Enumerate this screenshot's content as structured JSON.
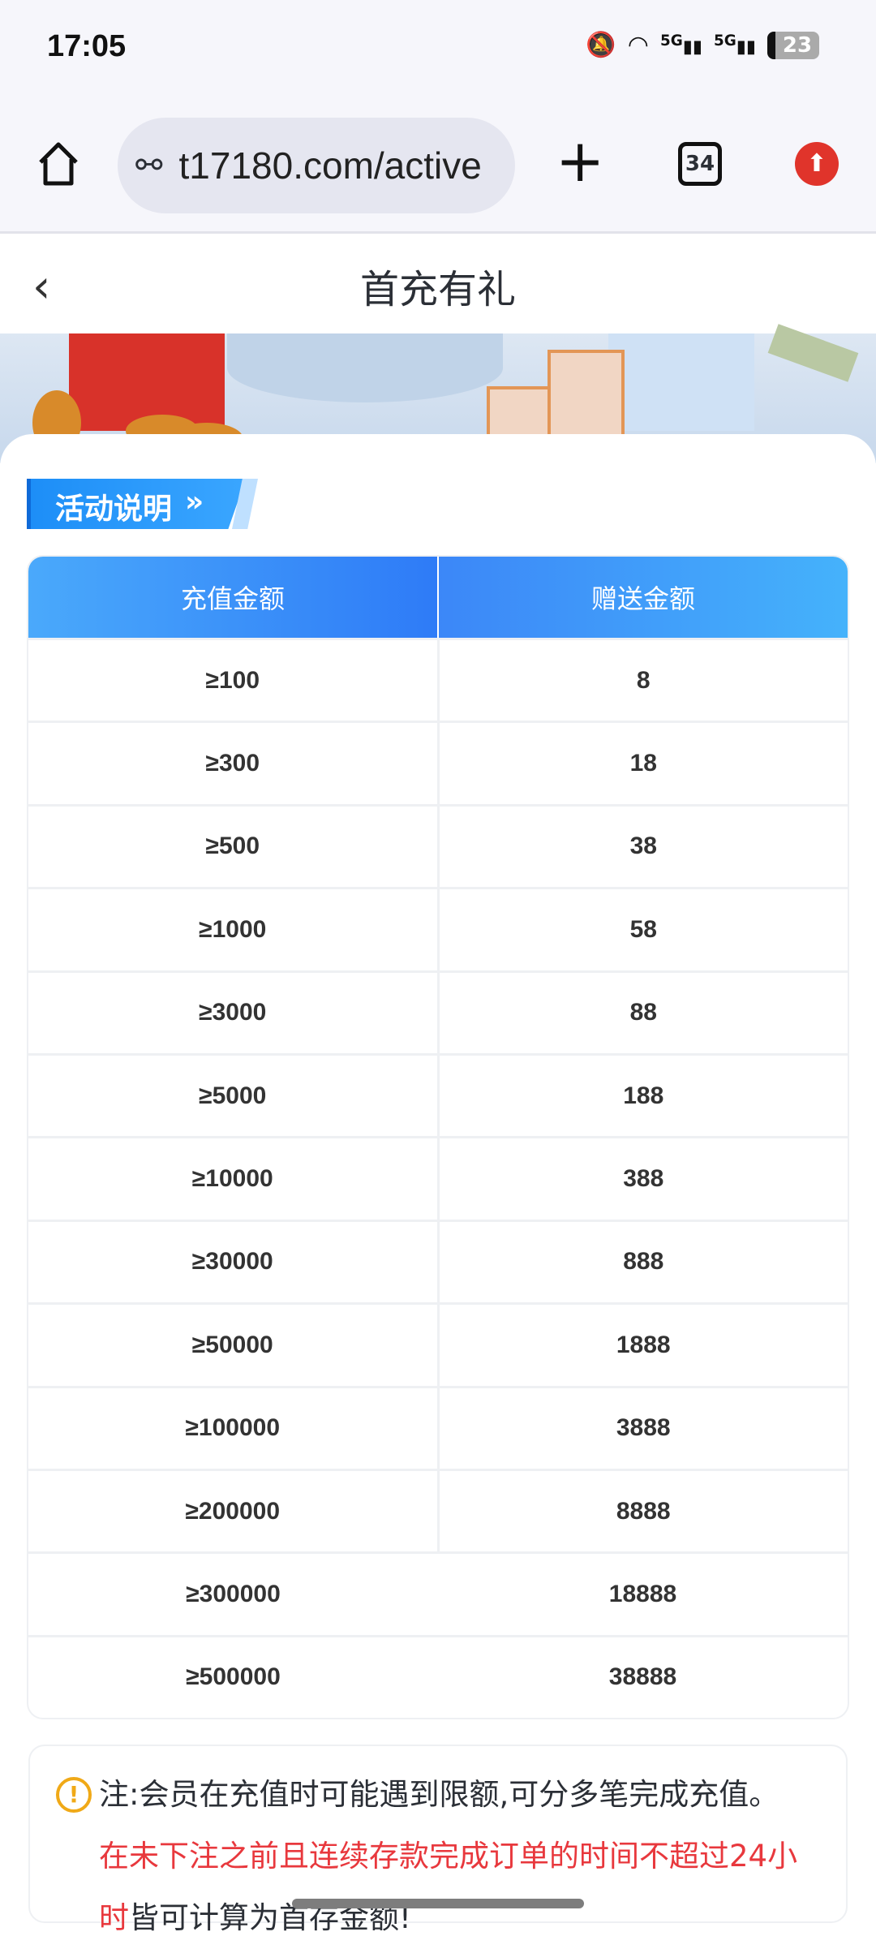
{
  "status_bar": {
    "time": "17:05",
    "network": "5G",
    "battery": "23"
  },
  "browser": {
    "url": "t17180.com/active",
    "tab_count": "34"
  },
  "header": {
    "title": "首充有礼",
    "back_icon": "chevron-left-icon"
  },
  "section": {
    "tag": "活动说明"
  },
  "table": {
    "headers": [
      "充值金额",
      "赠送金额"
    ],
    "rows": [
      [
        "≥100",
        "8"
      ],
      [
        "≥300",
        "18"
      ],
      [
        "≥500",
        "38"
      ],
      [
        "≥1000",
        "58"
      ],
      [
        "≥3000",
        "88"
      ],
      [
        "≥5000",
        "188"
      ],
      [
        "≥10000",
        "388"
      ],
      [
        "≥30000",
        "888"
      ],
      [
        "≥50000",
        "1888"
      ],
      [
        "≥100000",
        "3888"
      ],
      [
        "≥200000",
        "8888"
      ],
      [
        "≥300000",
        "18888"
      ],
      [
        "≥500000",
        "38888"
      ]
    ]
  },
  "note": {
    "line1": "注:会员在充值时可能遇到限额,可分多笔完成充值。",
    "highlight": "在未下注之前且连续存款完成订单的时间不超过24小时",
    "tail": "皆可计算为首存金额!"
  },
  "colors": {
    "accent": "#2e7bf7",
    "warning": "#f0a917",
    "highlight": "#e8383d"
  }
}
